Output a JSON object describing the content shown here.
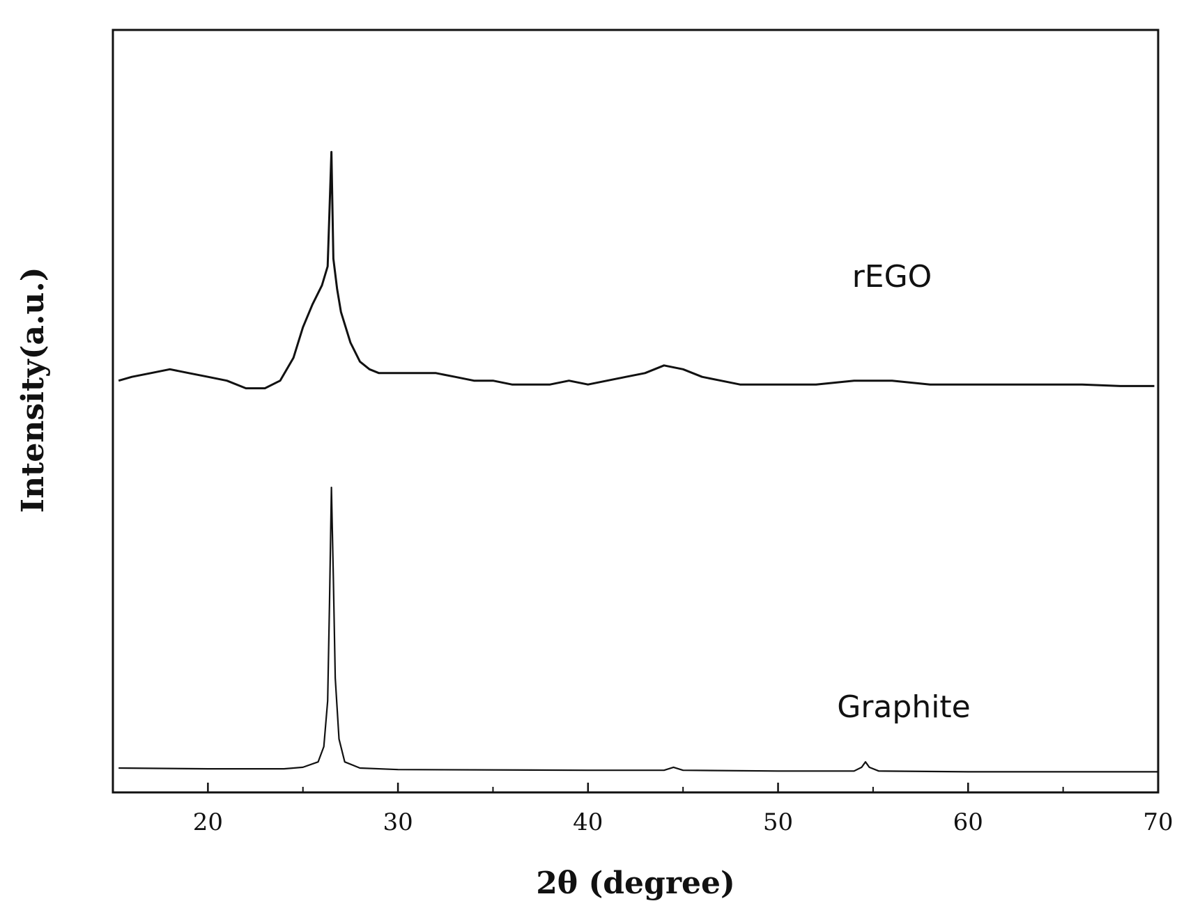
{
  "chart_data": {
    "type": "line",
    "xlabel": "2θ (degree)",
    "ylabel": "Intensity(a.u.)",
    "xlim": [
      15,
      70
    ],
    "ylim": [
      0,
      100
    ],
    "x_ticks": [
      20,
      30,
      40,
      50,
      60,
      70
    ],
    "x_minor_ticks": [
      25,
      35,
      45,
      55,
      65
    ],
    "y_ticks_shown": false,
    "grid": false,
    "legend": "none",
    "line_color": "#111111",
    "series": [
      {
        "name": "rEGO",
        "x": [
          15.3,
          16,
          17,
          18,
          19,
          20,
          21,
          22,
          23,
          23.8,
          24.5,
          25,
          25.5,
          26,
          26.3,
          26.5,
          26.6,
          26.8,
          27,
          27.5,
          28,
          28.5,
          29,
          30,
          31,
          32,
          33,
          34,
          35,
          36,
          37,
          38,
          39,
          40,
          41,
          42,
          43,
          44,
          45,
          46,
          47,
          48,
          49,
          50,
          52,
          54,
          56,
          58,
          60,
          62,
          64,
          66,
          68,
          69.8
        ],
        "y": [
          54,
          54.5,
          55,
          55.5,
          55,
          54.5,
          54,
          53,
          53,
          54,
          57,
          61,
          64,
          66.5,
          69,
          84,
          70,
          66,
          63,
          59,
          56.5,
          55.5,
          55,
          55,
          55,
          55,
          54.5,
          54,
          54,
          53.5,
          53.5,
          53.5,
          54,
          53.5,
          54,
          54.5,
          55,
          56,
          55.5,
          54.5,
          54,
          53.5,
          53.5,
          53.5,
          53.5,
          54,
          54,
          53.5,
          53.5,
          53.5,
          53.5,
          53.5,
          53.3,
          53.3
        ]
      },
      {
        "name": "Graphite",
        "x": [
          15.3,
          20,
          24,
          25,
          25.8,
          26.1,
          26.3,
          26.4,
          26.5,
          26.6,
          26.7,
          26.9,
          27.2,
          28,
          30,
          40,
          44,
          44.5,
          45,
          50,
          54,
          54.4,
          54.6,
          54.8,
          55.3,
          60,
          70
        ],
        "y": [
          3.2,
          3.1,
          3.1,
          3.3,
          4,
          6,
          12,
          25,
          40,
          28,
          15,
          7,
          4,
          3.2,
          3,
          2.9,
          2.9,
          3.3,
          2.9,
          2.8,
          2.8,
          3.3,
          4,
          3.3,
          2.8,
          2.7,
          2.7
        ]
      }
    ]
  }
}
